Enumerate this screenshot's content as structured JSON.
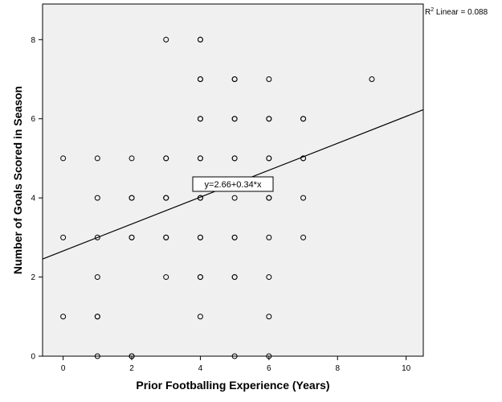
{
  "chart_data": {
    "type": "scatter",
    "xlabel": "Prior Footballing Experience (Years)",
    "ylabel": "Number of Goals Scored in Season",
    "xlim": [
      -0.6,
      10.5
    ],
    "ylim": [
      0,
      8.9
    ],
    "x_ticks": [
      0,
      2,
      4,
      6,
      8,
      10
    ],
    "y_ticks": [
      0,
      2,
      4,
      6,
      8
    ],
    "background_color": "#f0f0f0",
    "point_stroke_color": "#000000",
    "line_color": "#000000",
    "grid": false,
    "points": [
      {
        "x": 0,
        "y": 1
      },
      {
        "x": 0,
        "y": 3
      },
      {
        "x": 0,
        "y": 5
      },
      {
        "x": 1,
        "y": 0
      },
      {
        "x": 1,
        "y": 1
      },
      {
        "x": 1,
        "y": 1
      },
      {
        "x": 1,
        "y": 2
      },
      {
        "x": 1,
        "y": 3
      },
      {
        "x": 1,
        "y": 4
      },
      {
        "x": 1,
        "y": 5
      },
      {
        "x": 2,
        "y": 0
      },
      {
        "x": 2,
        "y": 0
      },
      {
        "x": 2,
        "y": 3
      },
      {
        "x": 2,
        "y": 3
      },
      {
        "x": 2,
        "y": 4
      },
      {
        "x": 2,
        "y": 4
      },
      {
        "x": 2,
        "y": 5
      },
      {
        "x": 3,
        "y": 2
      },
      {
        "x": 3,
        "y": 3
      },
      {
        "x": 3,
        "y": 3
      },
      {
        "x": 3,
        "y": 4
      },
      {
        "x": 3,
        "y": 4
      },
      {
        "x": 3,
        "y": 5
      },
      {
        "x": 3,
        "y": 5
      },
      {
        "x": 3,
        "y": 8
      },
      {
        "x": 4,
        "y": 1
      },
      {
        "x": 4,
        "y": 2
      },
      {
        "x": 4,
        "y": 2
      },
      {
        "x": 4,
        "y": 3
      },
      {
        "x": 4,
        "y": 3
      },
      {
        "x": 4,
        "y": 4
      },
      {
        "x": 4,
        "y": 4
      },
      {
        "x": 4,
        "y": 5
      },
      {
        "x": 4,
        "y": 5
      },
      {
        "x": 4,
        "y": 6
      },
      {
        "x": 4,
        "y": 6
      },
      {
        "x": 4,
        "y": 7
      },
      {
        "x": 4,
        "y": 7
      },
      {
        "x": 4,
        "y": 8
      },
      {
        "x": 4,
        "y": 8
      },
      {
        "x": 5,
        "y": 0
      },
      {
        "x": 5,
        "y": 2
      },
      {
        "x": 5,
        "y": 2
      },
      {
        "x": 5,
        "y": 3
      },
      {
        "x": 5,
        "y": 3
      },
      {
        "x": 5,
        "y": 4
      },
      {
        "x": 5,
        "y": 5
      },
      {
        "x": 5,
        "y": 5
      },
      {
        "x": 5,
        "y": 6
      },
      {
        "x": 5,
        "y": 6
      },
      {
        "x": 5,
        "y": 7
      },
      {
        "x": 5,
        "y": 7
      },
      {
        "x": 6,
        "y": 0
      },
      {
        "x": 6,
        "y": 1
      },
      {
        "x": 6,
        "y": 2
      },
      {
        "x": 6,
        "y": 3
      },
      {
        "x": 6,
        "y": 4
      },
      {
        "x": 6,
        "y": 4
      },
      {
        "x": 6,
        "y": 5
      },
      {
        "x": 6,
        "y": 5
      },
      {
        "x": 6,
        "y": 6
      },
      {
        "x": 6,
        "y": 6
      },
      {
        "x": 6,
        "y": 7
      },
      {
        "x": 7,
        "y": 3
      },
      {
        "x": 7,
        "y": 4
      },
      {
        "x": 7,
        "y": 5
      },
      {
        "x": 7,
        "y": 5
      },
      {
        "x": 7,
        "y": 6
      },
      {
        "x": 7,
        "y": 6
      },
      {
        "x": 9,
        "y": 7
      }
    ],
    "fit_line": {
      "intercept": 2.66,
      "slope": 0.34,
      "equation_label": "y=2.66+0.34*x"
    },
    "r2_label": {
      "prefix": "R",
      "superscript": "2",
      "suffix": " Linear = 0.088"
    }
  }
}
